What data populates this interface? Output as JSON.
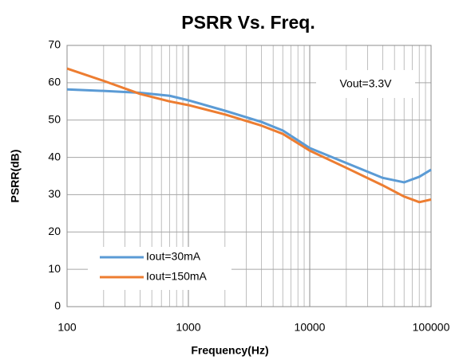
{
  "chart_data": {
    "type": "line",
    "title": "PSRR Vs. Freq.",
    "xlabel": "Frequency(Hz)",
    "ylabel": "PSRR(dB)",
    "annotation": "Vout=3.3V",
    "x": [
      100,
      200,
      400,
      700,
      1000,
      2000,
      4000,
      6000,
      10000,
      20000,
      40000,
      60000,
      80000,
      100000
    ],
    "series": [
      {
        "name": "Iout=30mA",
        "color": "#5b9bd5",
        "values": [
          58.2,
          57.8,
          57.3,
          56.5,
          55.3,
          52.5,
          49.5,
          47.2,
          42.5,
          38.5,
          34.5,
          33.3,
          34.8,
          36.7
        ]
      },
      {
        "name": "Iout=150mA",
        "color": "#ed7d31",
        "values": [
          63.8,
          60.5,
          57.0,
          55.0,
          54.0,
          51.5,
          48.5,
          46.3,
          41.8,
          37.2,
          32.5,
          29.5,
          28.0,
          28.7
        ]
      }
    ],
    "xscale": "log",
    "xlim": [
      100,
      100000
    ],
    "xticks": [
      100,
      1000,
      10000,
      100000
    ],
    "xminorticks": [
      200,
      300,
      400,
      500,
      600,
      700,
      800,
      900,
      2000,
      3000,
      4000,
      5000,
      6000,
      7000,
      8000,
      9000,
      20000,
      30000,
      40000,
      50000,
      60000,
      70000,
      80000,
      90000
    ],
    "ylim": [
      0,
      70
    ],
    "yticks": [
      0,
      10,
      20,
      30,
      40,
      50,
      60,
      70
    ],
    "grid": true,
    "legend": "lower left"
  }
}
